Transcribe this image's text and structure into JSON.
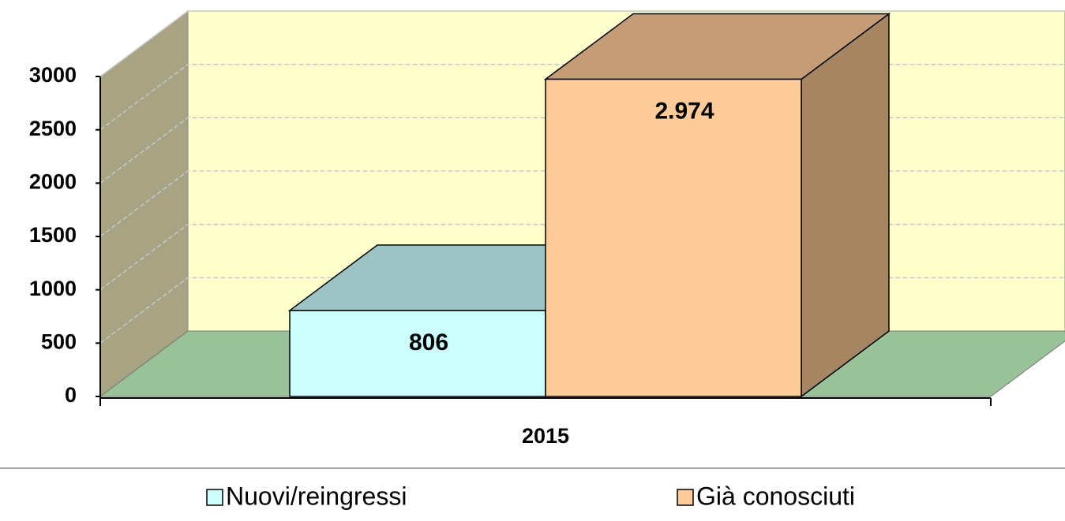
{
  "chart_data": {
    "type": "bar3d",
    "categories": [
      "2015"
    ],
    "series": [
      {
        "name": "Nuovi/reingressi",
        "color": "#ccffff",
        "values": [
          806
        ],
        "value_labels": [
          "806"
        ]
      },
      {
        "name": "Già conosciuti",
        "color": "#ffcc99",
        "values": [
          2974
        ],
        "value_labels": [
          "2.974"
        ]
      }
    ],
    "ylim": [
      0,
      3000
    ],
    "yticks": [
      0,
      500,
      1000,
      1500,
      2000,
      2500,
      3000
    ],
    "grid": true,
    "legend": "bottom"
  }
}
